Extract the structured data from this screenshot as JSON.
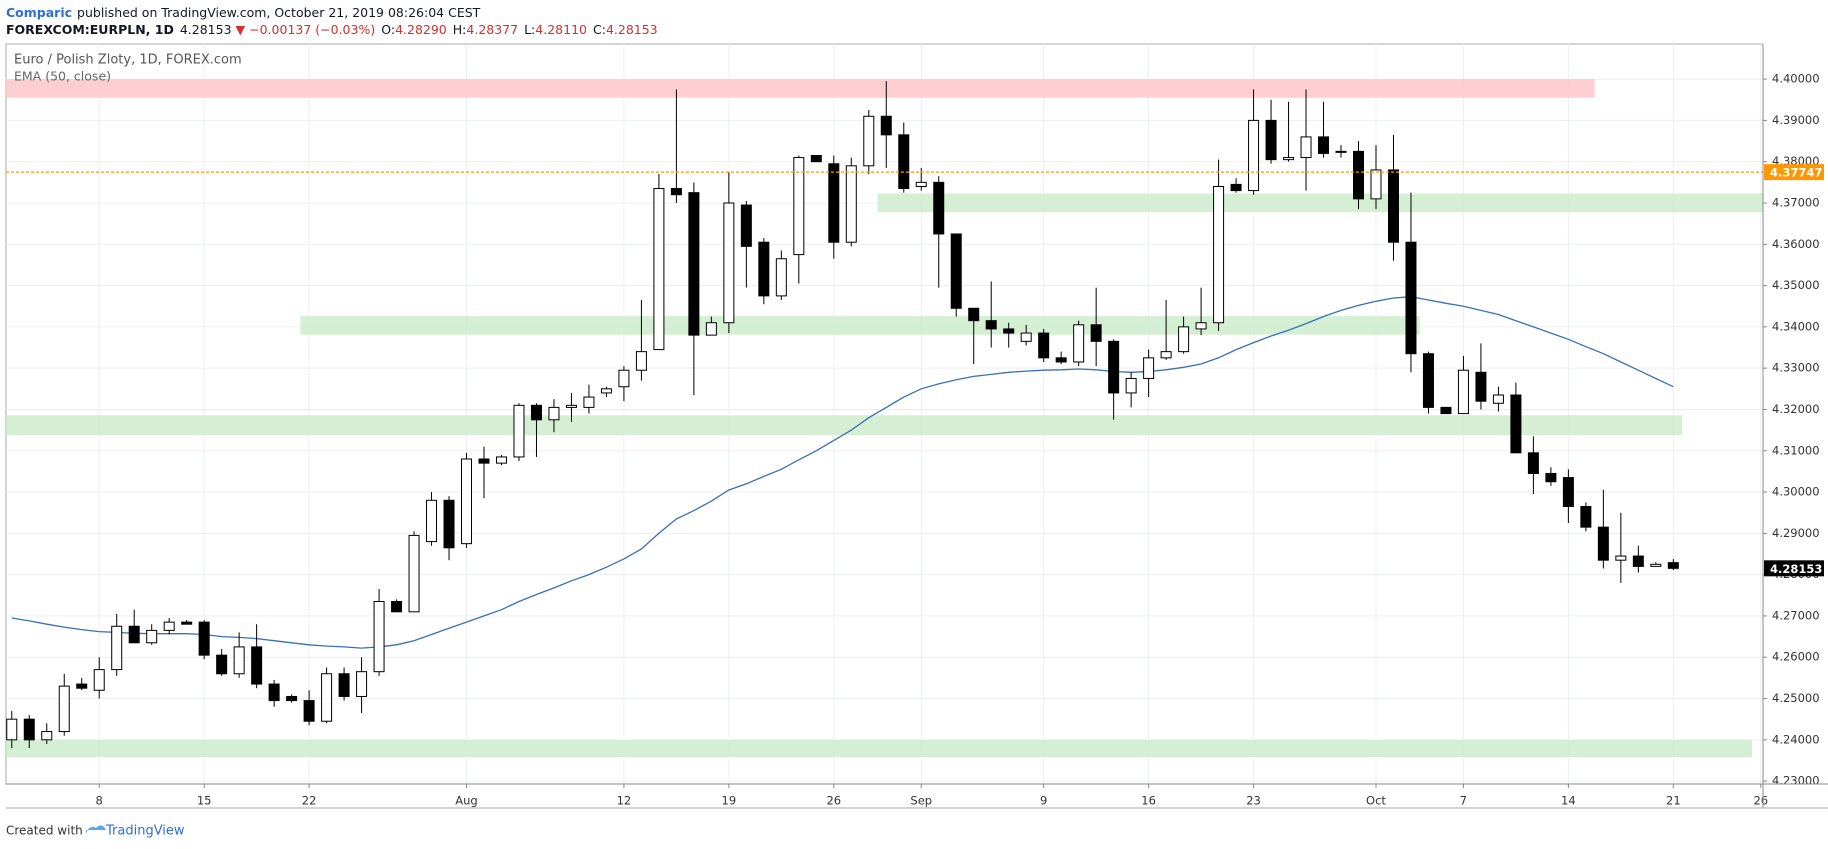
{
  "header": {
    "publisher": "Comparic",
    "published": "published on TradingView.com, October 21, 2019 08:26:04 CEST",
    "symbol": "FOREXCOM:EURPLN, 1D",
    "last": "4.28153",
    "change": "▼ −0.00137 (−0.03%)",
    "ohlc": [
      {
        "k": "O:",
        "v": "4.28290"
      },
      {
        "k": "H:",
        "v": "4.28377"
      },
      {
        "k": "L:",
        "v": "4.28110"
      },
      {
        "k": "C:",
        "v": "4.28153"
      }
    ]
  },
  "footer": {
    "text": "Created with",
    "brand": "TradingView"
  },
  "chart_data": {
    "type": "candlestick",
    "title": "Euro / Polish Zloty, 1D, FOREX.com",
    "categories": [
      null,
      null,
      null,
      null,
      null,
      "8",
      null,
      null,
      null,
      null,
      null,
      "15",
      null,
      null,
      null,
      null,
      null,
      "22",
      null,
      null,
      null,
      null,
      null,
      null,
      null,
      null,
      "Aug",
      null,
      null,
      null,
      null,
      null,
      null,
      null,
      null,
      "12",
      null,
      null,
      null,
      null,
      null,
      "19",
      null,
      null,
      null,
      null,
      null,
      "26",
      null,
      null,
      null,
      null,
      "Sep",
      null,
      null,
      null,
      null,
      null,
      null,
      "9",
      null,
      null,
      null,
      null,
      null,
      "16",
      null,
      null,
      null,
      null,
      null,
      "23",
      null,
      null,
      null,
      null,
      null,
      null,
      "Oct",
      null,
      null,
      null,
      null,
      "7",
      null,
      null,
      null,
      null,
      null,
      "14",
      null,
      null,
      null,
      null,
      null,
      "21",
      null,
      null,
      null,
      null,
      "26"
    ],
    "open": [
      4.24,
      4.245,
      4.24,
      4.242,
      4.2535,
      4.252,
      4.257,
      4.2675,
      4.2635,
      4.2665,
      4.2685,
      4.2685,
      4.2605,
      4.256,
      4.2625,
      4.2535,
      4.2505,
      4.2495,
      4.2445,
      4.256,
      4.2505,
      4.2565,
      4.2735,
      4.271,
      4.288,
      4.298,
      4.2875,
      4.308,
      4.307,
      4.3085,
      4.321,
      4.3175,
      4.3205,
      4.3205,
      4.324,
      4.3255,
      4.3295,
      4.3345,
      4.3735,
      4.3725,
      4.338,
      4.341,
      4.3695,
      4.3605,
      4.3475,
      4.3575,
      4.3815,
      4.3795,
      4.3605,
      4.379,
      4.391,
      4.3865,
      4.374,
      4.375,
      4.3625,
      4.3445,
      4.3415,
      4.3395,
      4.3365,
      4.3385,
      4.3325,
      4.3315,
      4.3405,
      4.3365,
      4.324,
      4.3275,
      4.3325,
      4.334,
      4.3395,
      4.341,
      4.3745,
      4.373,
      4.39,
      4.3805,
      4.381,
      4.386,
      4.3825,
      4.3825,
      4.371,
      4.378,
      4.3605,
      4.3335,
      4.3205,
      4.319,
      4.329,
      4.3215,
      4.3235,
      4.3095,
      4.3045,
      4.3035,
      4.2965,
      4.2915,
      4.2835,
      4.2845,
      4.282,
      4.2829,
      null,
      null,
      null,
      null,
      null
    ],
    "high": [
      4.247,
      4.246,
      4.244,
      4.256,
      4.255,
      4.26,
      4.2705,
      4.2715,
      4.268,
      4.2695,
      4.269,
      4.269,
      4.262,
      4.266,
      4.268,
      4.2545,
      4.251,
      4.252,
      4.2575,
      4.2575,
      4.26,
      4.2765,
      4.274,
      4.2905,
      4.3,
      4.299,
      4.3095,
      4.311,
      4.309,
      4.3215,
      4.3215,
      4.3225,
      4.324,
      4.326,
      4.3255,
      4.3305,
      4.3465,
      4.377,
      4.3975,
      4.375,
      4.3425,
      4.3775,
      4.3705,
      4.3615,
      4.3585,
      4.3815,
      4.3815,
      4.3815,
      4.381,
      4.3925,
      4.3995,
      4.3895,
      4.3785,
      4.3765,
      4.3625,
      4.3445,
      4.351,
      4.341,
      4.3405,
      4.3395,
      4.334,
      4.3415,
      4.3495,
      4.337,
      4.329,
      4.3345,
      4.3465,
      4.3425,
      4.3495,
      4.3805,
      4.376,
      4.3975,
      4.395,
      4.3945,
      4.3975,
      4.3945,
      4.384,
      4.385,
      4.384,
      4.3865,
      4.3725,
      4.334,
      4.3205,
      4.333,
      4.336,
      4.3255,
      4.3265,
      4.3135,
      4.306,
      4.3055,
      4.2975,
      4.3005,
      4.295,
      4.287,
      4.283,
      4.28377,
      null,
      null,
      null,
      null,
      null
    ],
    "low": [
      4.238,
      4.238,
      4.239,
      4.241,
      4.252,
      4.25,
      4.2555,
      4.2635,
      4.263,
      4.2655,
      4.268,
      4.2595,
      4.2555,
      4.255,
      4.2525,
      4.248,
      4.249,
      4.2435,
      4.244,
      4.2495,
      4.2465,
      4.2555,
      4.271,
      4.271,
      4.287,
      4.2835,
      4.2865,
      4.2985,
      4.3065,
      4.3075,
      4.3085,
      4.3145,
      4.317,
      4.319,
      4.323,
      4.322,
      4.327,
      4.3345,
      4.37,
      4.3235,
      4.338,
      4.3385,
      4.3495,
      4.3455,
      4.3465,
      4.3505,
      4.38,
      4.3565,
      4.3595,
      4.377,
      4.3785,
      4.3725,
      4.373,
      4.3495,
      4.3425,
      4.331,
      4.335,
      4.335,
      4.3355,
      4.3315,
      4.331,
      4.3305,
      4.3305,
      4.3175,
      4.3205,
      4.323,
      4.332,
      4.3335,
      4.338,
      4.339,
      4.3725,
      4.372,
      4.3795,
      4.38,
      4.373,
      4.381,
      4.381,
      4.3685,
      4.3685,
      4.356,
      4.329,
      4.319,
      4.319,
      4.319,
      4.32,
      4.3195,
      4.3095,
      4.2995,
      4.3015,
      4.2925,
      4.2905,
      4.2815,
      4.278,
      4.2805,
      4.282,
      4.2811,
      null,
      null,
      null,
      null,
      null
    ],
    "close": [
      4.245,
      4.24,
      4.242,
      4.253,
      4.2525,
      4.257,
      4.2675,
      4.2635,
      4.2665,
      4.2685,
      4.268,
      4.2605,
      4.256,
      4.2625,
      4.2535,
      4.2495,
      4.2495,
      4.2445,
      4.256,
      4.2505,
      4.2565,
      4.2735,
      4.271,
      4.2895,
      4.298,
      4.2865,
      4.308,
      4.307,
      4.3085,
      4.321,
      4.3175,
      4.3205,
      4.321,
      4.323,
      4.325,
      4.3295,
      4.334,
      4.3735,
      4.372,
      4.338,
      4.341,
      4.37,
      4.3595,
      4.3475,
      4.3565,
      4.381,
      4.38,
      4.3605,
      4.379,
      4.391,
      4.3865,
      4.3735,
      4.375,
      4.3625,
      4.3445,
      4.3415,
      4.3395,
      4.3385,
      4.3385,
      4.3325,
      4.3315,
      4.3405,
      4.3365,
      4.324,
      4.3275,
      4.3325,
      4.334,
      4.34,
      4.341,
      4.374,
      4.373,
      4.39,
      4.3805,
      4.381,
      4.386,
      4.382,
      4.3823,
      4.371,
      4.378,
      4.3605,
      4.3335,
      4.3205,
      4.319,
      4.3295,
      4.322,
      4.3235,
      4.3095,
      4.3045,
      4.3025,
      4.2965,
      4.2915,
      4.2835,
      4.2845,
      4.282,
      4.2825,
      4.28153,
      null,
      null,
      null,
      null,
      null
    ],
    "up_color": "#ffffff",
    "down_color": "#000000",
    "wick_color": "#000000",
    "ema": {
      "name": "EMA (50, close)",
      "color": "#3a6fb7",
      "values": [
        4.2695,
        4.2688,
        4.268,
        4.2673,
        4.2667,
        4.2662,
        4.266,
        4.2658,
        4.2657,
        4.2657,
        4.2657,
        4.2655,
        4.265,
        4.2648,
        4.2645,
        4.264,
        4.2635,
        4.263,
        4.2627,
        4.2625,
        4.2622,
        4.2625,
        4.263,
        4.264,
        4.2655,
        4.267,
        4.2685,
        4.27,
        4.2715,
        4.2735,
        4.2752,
        4.2768,
        4.2785,
        4.28,
        4.2818,
        4.2838,
        4.2862,
        4.29,
        4.2935,
        4.2955,
        4.2978,
        4.3005,
        4.302,
        4.3038,
        4.3055,
        4.3078,
        4.31,
        4.3125,
        4.315,
        4.318,
        4.3205,
        4.323,
        4.325,
        4.3262,
        4.3272,
        4.328,
        4.3285,
        4.329,
        4.3293,
        4.3295,
        4.3296,
        4.3298,
        4.3296,
        4.3292,
        4.329,
        4.3292,
        4.3296,
        4.3302,
        4.331,
        4.3325,
        4.3345,
        4.3362,
        4.3378,
        4.3392,
        4.3408,
        4.3425,
        4.344,
        4.3452,
        4.3462,
        4.347,
        4.3473,
        4.3465,
        4.3457,
        4.345,
        4.344,
        4.343,
        4.3415,
        4.34,
        4.3385,
        4.337,
        4.3352,
        4.3335,
        4.3315,
        4.3295,
        4.3275,
        4.3255,
        null,
        null,
        null,
        null,
        null
      ]
    },
    "zones": [
      {
        "low": 4.3955,
        "high": 4.4,
        "start": 0,
        "end": 90,
        "color": "#ffc6ca"
      },
      {
        "low": 4.3678,
        "high": 4.3723,
        "start": 50,
        "end": 100,
        "color": "#cdeccd"
      },
      {
        "low": 4.3381,
        "high": 4.3426,
        "start": 17,
        "end": 80,
        "color": "#cdeccd"
      },
      {
        "low": 4.3138,
        "high": 4.3186,
        "start": 0,
        "end": 95,
        "color": "#cdeccd"
      },
      {
        "low": 4.2358,
        "high": 4.24,
        "start": 0,
        "end": 99,
        "color": "#cdeccd"
      }
    ],
    "price_line": {
      "value": 4.37747,
      "color": "#ff9800"
    },
    "ylim": [
      4.2293,
      4.4085
    ],
    "yticks": [
      {
        "value": 4.23,
        "label": "4.23000"
      },
      {
        "value": 4.24,
        "label": "4.24000"
      },
      {
        "value": 4.25,
        "label": "4.25000"
      },
      {
        "value": 4.26,
        "label": "4.26000"
      },
      {
        "value": 4.27,
        "label": "4.27000"
      },
      {
        "value": 4.28,
        "label": "4.28000"
      },
      {
        "value": 4.29,
        "label": "4.29000"
      },
      {
        "value": 4.3,
        "label": "4.30000"
      },
      {
        "value": 4.31,
        "label": "4.31000"
      },
      {
        "value": 4.32,
        "label": "4.32000"
      },
      {
        "value": 4.33,
        "label": "4.33000"
      },
      {
        "value": 4.34,
        "label": "4.34000"
      },
      {
        "value": 4.35,
        "label": "4.35000"
      },
      {
        "value": 4.36,
        "label": "4.36000"
      },
      {
        "value": 4.37,
        "label": "4.37000"
      },
      {
        "value": 4.38,
        "label": "4.38000"
      },
      {
        "value": 4.39,
        "label": "4.39000"
      },
      {
        "value": 4.4,
        "label": "4.40000"
      }
    ],
    "grid": true
  }
}
